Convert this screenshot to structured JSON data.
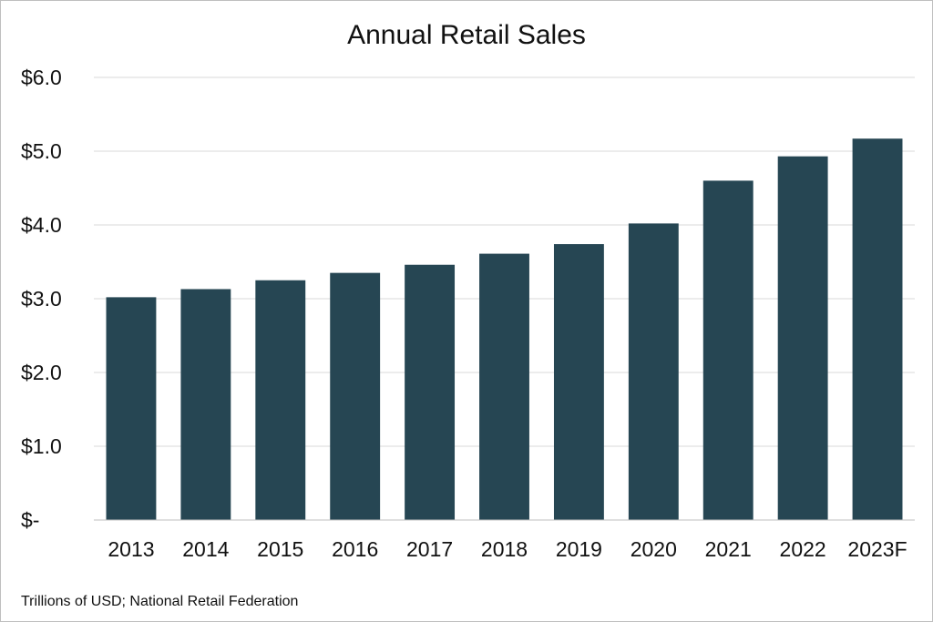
{
  "chart_data": {
    "type": "bar",
    "title": "Annual Retail Sales",
    "categories": [
      "2013",
      "2014",
      "2015",
      "2016",
      "2017",
      "2018",
      "2019",
      "2020",
      "2021",
      "2022",
      "2023F"
    ],
    "values": [
      3.02,
      3.13,
      3.25,
      3.35,
      3.46,
      3.61,
      3.74,
      4.02,
      4.6,
      4.93,
      5.17
    ],
    "ylim": [
      0,
      6
    ],
    "yticks": [
      0,
      1,
      2,
      3,
      4,
      5,
      6
    ],
    "ytick_labels": [
      "$-",
      "$1.0",
      "$2.0",
      "$3.0",
      "$4.0",
      "$5.0",
      "$6.0"
    ],
    "xlabel": "",
    "ylabel": "",
    "grid": true,
    "legend": "none",
    "bar_color": "#264653",
    "note": "Trillions of USD; National Retail Federation"
  }
}
